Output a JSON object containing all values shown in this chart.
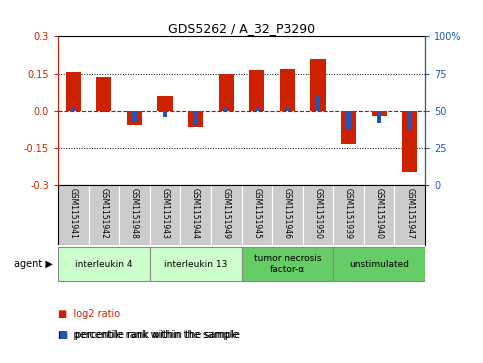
{
  "title": "GDS5262 / A_32_P3290",
  "samples": [
    "GSM1151941",
    "GSM1151942",
    "GSM1151948",
    "GSM1151943",
    "GSM1151944",
    "GSM1151949",
    "GSM1151945",
    "GSM1151946",
    "GSM1151950",
    "GSM1151939",
    "GSM1151940",
    "GSM1151947"
  ],
  "log2_ratio": [
    0.158,
    0.135,
    -0.055,
    0.06,
    -0.065,
    0.148,
    0.165,
    0.168,
    0.21,
    -0.135,
    -0.02,
    -0.245
  ],
  "percentile_rank": [
    52,
    49,
    43,
    46,
    40,
    52,
    52,
    52,
    60,
    37,
    42,
    38
  ],
  "groups": [
    {
      "label": "interleukin 4",
      "n_samples": 3,
      "color": "#ccffcc"
    },
    {
      "label": "interleukin 13",
      "n_samples": 3,
      "color": "#ccffcc"
    },
    {
      "label": "tumor necrosis\nfactor-α",
      "n_samples": 3,
      "color": "#66cc66"
    },
    {
      "label": "unstimulated",
      "n_samples": 3,
      "color": "#66cc66"
    }
  ],
  "ylim": [
    -0.3,
    0.3
  ],
  "yticks_left": [
    -0.3,
    -0.15,
    0.0,
    0.15,
    0.3
  ],
  "yticks_right": [
    0,
    25,
    50,
    75,
    100
  ],
  "bar_color_red": "#cc2200",
  "bar_color_blue": "#2255bb",
  "dashed_line_color": "#cc0000",
  "bg_color": "#ffffff",
  "plot_bg_color": "#ffffff",
  "sample_bg_color": "#cccccc",
  "bar_width": 0.5,
  "blue_bar_width": 0.15
}
